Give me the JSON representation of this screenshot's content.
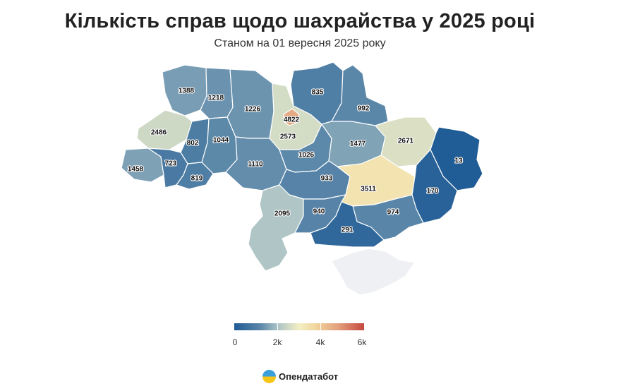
{
  "header": {
    "title": "Кількість справ щодо шахрайства у 2025 році",
    "subtitle": "Станом на 01 вересня 2025 року"
  },
  "map": {
    "regions": [
      {
        "name": "volyn",
        "value": 1388
      },
      {
        "name": "rivne",
        "value": 1218
      },
      {
        "name": "zhytomyr",
        "value": 1226
      },
      {
        "name": "kyiv-oblast",
        "value": 2573
      },
      {
        "name": "kyiv-city",
        "value": 4822
      },
      {
        "name": "chernihiv",
        "value": 835
      },
      {
        "name": "sumy",
        "value": 992
      },
      {
        "name": "lviv",
        "value": 2486
      },
      {
        "name": "ternopil",
        "value": 802
      },
      {
        "name": "khmelnytskyi",
        "value": 1044
      },
      {
        "name": "cherkasy",
        "value": 1026
      },
      {
        "name": "poltava",
        "value": 1477
      },
      {
        "name": "kharkiv",
        "value": 2671
      },
      {
        "name": "luhansk",
        "value": 13
      },
      {
        "name": "zakarpattia",
        "value": 1458
      },
      {
        "name": "ivano-frankivsk",
        "value": 723
      },
      {
        "name": "chernivtsi",
        "value": 819
      },
      {
        "name": "vinnytsia",
        "value": 1110
      },
      {
        "name": "kirovohrad",
        "value": 933
      },
      {
        "name": "dnipropetrovsk",
        "value": 3511
      },
      {
        "name": "donetsk",
        "value": 170
      },
      {
        "name": "odesa",
        "value": 2095
      },
      {
        "name": "mykolaiv",
        "value": 940
      },
      {
        "name": "zaporizhzhia",
        "value": 974
      },
      {
        "name": "kherson",
        "value": 291
      },
      {
        "name": "crimea",
        "value": null
      }
    ],
    "no_data_color": "#eef0f3"
  },
  "legend": {
    "min": 0,
    "max": 6000,
    "labels": [
      "0",
      "2k",
      "4k",
      "6k"
    ],
    "colors": [
      "#1f5b95",
      "#5a86a8",
      "#a9c2c6",
      "#f3efc4",
      "#f1d79f",
      "#e3a07d",
      "#c4483e"
    ]
  },
  "brand": {
    "name": "Опендатабот"
  }
}
